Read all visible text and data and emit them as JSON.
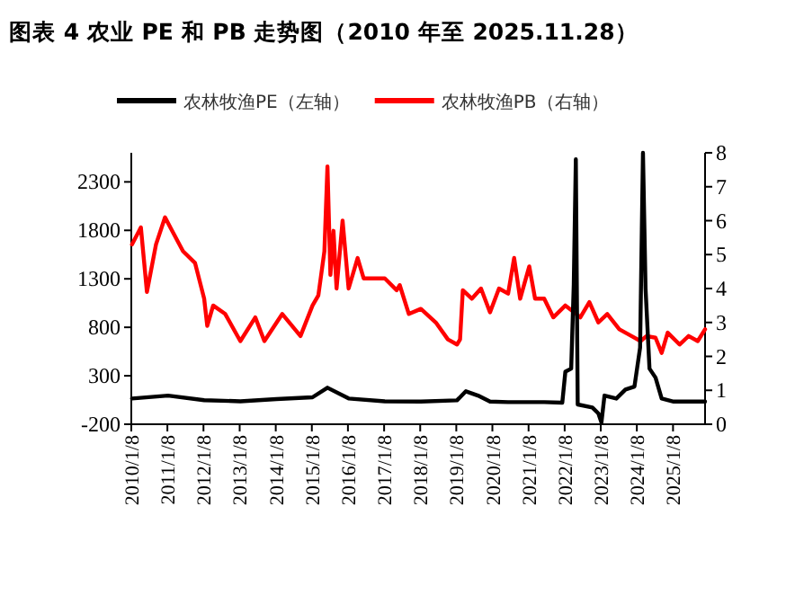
{
  "chart_data": {
    "type": "line",
    "title": "图表 4 农业 PE 和 PB 走势图（2010 年至 2025.11.28）",
    "legend": "top",
    "xlim": [
      "2010-01-08",
      "2025-11-28"
    ],
    "xticks": [
      {
        "value": "2010-01-08",
        "label": "2010/1/8"
      },
      {
        "value": "2011-01-08",
        "label": "2011/1/8"
      },
      {
        "value": "2012-01-08",
        "label": "2012/1/8"
      },
      {
        "value": "2013-01-08",
        "label": "2013/1/8"
      },
      {
        "value": "2014-01-08",
        "label": "2014/1/8"
      },
      {
        "value": "2015-01-08",
        "label": "2015/1/8"
      },
      {
        "value": "2016-01-08",
        "label": "2016/1/8"
      },
      {
        "value": "2017-01-08",
        "label": "2017/1/8"
      },
      {
        "value": "2018-01-08",
        "label": "2018/1/8"
      },
      {
        "value": "2019-01-08",
        "label": "2019/1/8"
      },
      {
        "value": "2020-01-08",
        "label": "2020/1/8"
      },
      {
        "value": "2021-01-08",
        "label": "2021/1/8"
      },
      {
        "value": "2022-01-08",
        "label": "2022/1/8"
      },
      {
        "value": "2023-01-08",
        "label": "2023/1/8"
      },
      {
        "value": "2024-01-08",
        "label": "2024/1/8"
      },
      {
        "value": "2025-01-08",
        "label": "2025/1/8"
      }
    ],
    "ylim": [
      -200,
      2600
    ],
    "yticks": [
      -200,
      300,
      800,
      1300,
      1800,
      2300
    ],
    "y2lim": [
      0,
      8
    ],
    "y2ticks": [
      0,
      1,
      2,
      3,
      4,
      5,
      6,
      7,
      8
    ],
    "series": [
      {
        "name": "农林牧渔PE（左轴）",
        "color": "#000000",
        "x": [
          "2010-01-15",
          "2011-01-15",
          "2012-01-15",
          "2013-01-15",
          "2014-01-15",
          "2015-01-15",
          "2015-06-15",
          "2016-01-15",
          "2017-01-15",
          "2018-01-15",
          "2019-01-15",
          "2019-04-15",
          "2019-08-15",
          "2019-12-15",
          "2020-06-15",
          "2021-06-15",
          "2021-12-15",
          "2022-01-15",
          "2022-03-15",
          "2022-04-10",
          "2022-05-01",
          "2022-05-20",
          "2022-10-15",
          "2022-12-15",
          "2023-01-15",
          "2023-02-15",
          "2023-06-15",
          "2023-09-15",
          "2023-12-15",
          "2024-02-10",
          "2024-03-10",
          "2024-04-05",
          "2024-05-15",
          "2024-07-15",
          "2024-09-15",
          "2025-01-15",
          "2025-11-28"
        ],
        "values": [
          66,
          96,
          48,
          37,
          59,
          78,
          177,
          66,
          37,
          34,
          47,
          140,
          96,
          34,
          28,
          28,
          22,
          343,
          374,
          1238,
          2533,
          4,
          -27,
          -89,
          -181,
          96,
          65,
          158,
          189,
          590,
          2600,
          1200,
          374,
          281,
          65,
          34,
          34
        ]
      },
      {
        "name": "农林牧渔PB（右轴）",
        "color": "#ff0000",
        "axis": "y2",
        "x": [
          "2010-01-15",
          "2010-04-15",
          "2010-06-15",
          "2010-09-15",
          "2010-12-15",
          "2011-03-15",
          "2011-06-15",
          "2011-10-15",
          "2012-01-15",
          "2012-02-15",
          "2012-04-15",
          "2012-08-15",
          "2013-01-15",
          "2013-06-15",
          "2013-09-15",
          "2014-03-15",
          "2014-09-15",
          "2015-01-15",
          "2015-03-15",
          "2015-05-15",
          "2015-06-15",
          "2015-07-15",
          "2015-08-15",
          "2015-09-15",
          "2015-11-15",
          "2016-01-15",
          "2016-04-15",
          "2016-06-15",
          "2017-01-15",
          "2017-05-15",
          "2017-06-15",
          "2017-09-15",
          "2018-01-15",
          "2018-06-15",
          "2018-10-15",
          "2019-01-15",
          "2019-02-15",
          "2019-03-15",
          "2019-06-15",
          "2019-09-15",
          "2019-12-15",
          "2020-03-15",
          "2020-06-15",
          "2020-08-15",
          "2020-10-15",
          "2021-01-15",
          "2021-03-15",
          "2021-06-15",
          "2021-09-15",
          "2022-01-15",
          "2022-04-15",
          "2022-06-15",
          "2022-09-15",
          "2022-12-15",
          "2023-03-15",
          "2023-07-15",
          "2023-11-15",
          "2024-02-15",
          "2024-04-15",
          "2024-07-15",
          "2024-09-15",
          "2024-11-15",
          "2025-03-15",
          "2025-06-15",
          "2025-09-15",
          "2025-11-28"
        ],
        "values": [
          5.3,
          5.8,
          3.9,
          5.3,
          6.1,
          5.6,
          5.1,
          4.75,
          3.7,
          2.9,
          3.5,
          3.25,
          2.45,
          3.15,
          2.45,
          3.25,
          2.6,
          3.5,
          3.8,
          5.1,
          7.6,
          4.4,
          5.7,
          4.0,
          6.0,
          4.0,
          4.9,
          4.3,
          4.3,
          3.95,
          4.1,
          3.25,
          3.4,
          3.0,
          2.5,
          2.35,
          2.5,
          3.95,
          3.7,
          4.0,
          3.3,
          4.0,
          3.85,
          4.9,
          3.7,
          4.65,
          3.7,
          3.7,
          3.15,
          3.5,
          3.3,
          3.15,
          3.6,
          3.0,
          3.25,
          2.8,
          2.6,
          2.45,
          2.6,
          2.55,
          2.1,
          2.7,
          2.35,
          2.6,
          2.45,
          2.8
        ]
      }
    ]
  }
}
